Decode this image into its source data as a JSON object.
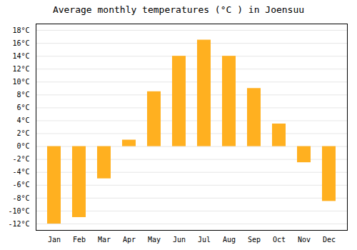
{
  "chart_data": {
    "type": "bar",
    "title": "Average monthly temperatures (°C ) in Joensuu",
    "categories": [
      "Jan",
      "Feb",
      "Mar",
      "Apr",
      "May",
      "Jun",
      "Jul",
      "Aug",
      "Sep",
      "Oct",
      "Nov",
      "Dec"
    ],
    "values": [
      -12,
      -11,
      -5,
      1,
      8.5,
      14,
      16.5,
      14,
      9,
      3.5,
      -2.5,
      -8.5
    ],
    "color": "#FFB020",
    "ylim": [
      -13,
      19
    ],
    "yticks": [
      {
        "value": -12,
        "label": "-12°C"
      },
      {
        "value": -10,
        "label": "-10°C"
      },
      {
        "value": -8,
        "label": "-8°C"
      },
      {
        "value": -6,
        "label": "-6°C"
      },
      {
        "value": -4,
        "label": "-4°C"
      },
      {
        "value": -2,
        "label": "-2°C"
      },
      {
        "value": 0,
        "label": "0°C"
      },
      {
        "value": 2,
        "label": "2°C"
      },
      {
        "value": 4,
        "label": "4°C"
      },
      {
        "value": 6,
        "label": "6°C"
      },
      {
        "value": 8,
        "label": "8°C"
      },
      {
        "value": 10,
        "label": "10°C"
      },
      {
        "value": 12,
        "label": "12°C"
      },
      {
        "value": 14,
        "label": "14°C"
      },
      {
        "value": 16,
        "label": "16°C"
      },
      {
        "value": 18,
        "label": "18°C"
      }
    ],
    "grid": true
  }
}
